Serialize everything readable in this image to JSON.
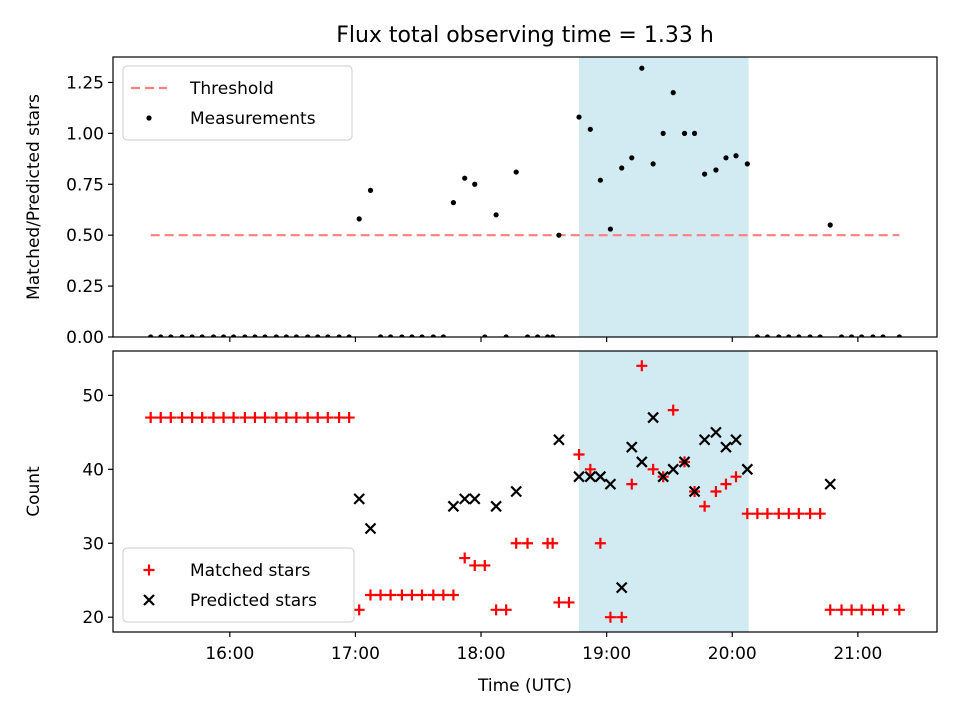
{
  "figure": {
    "title": "Flux total observing time = 1.33 h"
  },
  "chart_data": [
    {
      "type": "scatter",
      "ylabel": "Matched/Predicted stars",
      "ylim": [
        0,
        1.375
      ],
      "yticks": [
        "0.00",
        "0.25",
        "0.50",
        "0.75",
        "1.00",
        "1.25"
      ],
      "ytick_values": [
        0,
        0.25,
        0.5,
        0.75,
        1.0,
        1.25
      ],
      "xlim_hours": [
        15.07,
        21.63
      ],
      "grid": false,
      "legend_location": "upper-left",
      "highlight_span_hours": [
        18.78,
        20.13
      ],
      "highlight_color": "#add8e6",
      "threshold": {
        "name": "Threshold",
        "value": 0.5,
        "x_hours": [
          15.37,
          21.33
        ],
        "color": "#ff7f7f",
        "style": "dashed"
      },
      "series": [
        {
          "name": "Measurements",
          "marker": "dot",
          "color": "#000000",
          "x_hours": [
            15.37,
            15.45,
            15.53,
            15.62,
            15.7,
            15.78,
            15.87,
            15.95,
            16.03,
            16.12,
            16.2,
            16.28,
            16.37,
            16.45,
            16.53,
            16.62,
            16.7,
            16.78,
            16.87,
            16.95,
            17.03,
            17.12,
            17.2,
            17.28,
            17.37,
            17.45,
            17.53,
            17.62,
            17.7,
            17.78,
            17.87,
            17.95,
            18.03,
            18.12,
            18.2,
            18.28,
            18.37,
            18.45,
            18.53,
            18.57,
            18.62,
            18.78,
            18.87,
            18.95,
            19.03,
            19.12,
            19.2,
            19.28,
            19.37,
            19.45,
            19.53,
            19.62,
            19.7,
            19.78,
            19.87,
            19.95,
            20.03,
            20.12,
            20.2,
            20.28,
            20.37,
            20.45,
            20.53,
            20.62,
            20.7,
            20.78,
            20.87,
            20.95,
            21.03,
            21.12,
            21.2,
            21.33
          ],
          "values": [
            0,
            0,
            0,
            0,
            0,
            0,
            0,
            0,
            0,
            0,
            0,
            0,
            0,
            0,
            0,
            0,
            0,
            0,
            0,
            0,
            0.58,
            0.72,
            0,
            0,
            0,
            0,
            0,
            0,
            0,
            0.66,
            0.78,
            0.75,
            0,
            0.6,
            0,
            0.81,
            0,
            0,
            0,
            0,
            0.5,
            1.08,
            1.02,
            0.77,
            0.53,
            0.83,
            0.88,
            1.32,
            0.85,
            1.0,
            1.2,
            1.0,
            1.0,
            0.8,
            0.82,
            0.88,
            0.89,
            0.85,
            0,
            0,
            0,
            0,
            0,
            0,
            0,
            0.55,
            0,
            0,
            0,
            0,
            0,
            0
          ]
        }
      ]
    },
    {
      "type": "scatter",
      "xlabel": "Time (UTC)",
      "ylabel": "Count",
      "ylim": [
        18,
        56
      ],
      "yticks": [
        "20",
        "30",
        "40",
        "50"
      ],
      "ytick_values": [
        20,
        30,
        40,
        50
      ],
      "xlim_hours": [
        15.07,
        21.63
      ],
      "xticks": [
        "16:00",
        "17:00",
        "18:00",
        "19:00",
        "20:00",
        "21:00"
      ],
      "xtick_values": [
        16,
        17,
        18,
        19,
        20,
        21
      ],
      "grid": false,
      "legend_location": "lower-left",
      "highlight_span_hours": [
        18.78,
        20.13
      ],
      "highlight_color": "#add8e6",
      "series": [
        {
          "name": "Matched stars",
          "marker": "plus",
          "color": "#ff0000",
          "x_hours": [
            15.37,
            15.45,
            15.53,
            15.62,
            15.7,
            15.78,
            15.87,
            15.95,
            16.03,
            16.12,
            16.2,
            16.28,
            16.37,
            16.45,
            16.53,
            16.62,
            16.7,
            16.78,
            16.87,
            16.95,
            17.03,
            17.12,
            17.2,
            17.28,
            17.37,
            17.45,
            17.53,
            17.62,
            17.7,
            17.78,
            17.87,
            17.95,
            18.03,
            18.12,
            18.2,
            18.28,
            18.37,
            18.53,
            18.57,
            18.62,
            18.7,
            18.78,
            18.87,
            18.95,
            19.03,
            19.12,
            19.2,
            19.28,
            19.37,
            19.45,
            19.53,
            19.62,
            19.7,
            19.78,
            19.87,
            19.95,
            20.03,
            20.12,
            20.2,
            20.28,
            20.37,
            20.45,
            20.53,
            20.62,
            20.7,
            20.78,
            20.87,
            20.95,
            21.03,
            21.12,
            21.2,
            21.33
          ],
          "values": [
            47,
            47,
            47,
            47,
            47,
            47,
            47,
            47,
            47,
            47,
            47,
            47,
            47,
            47,
            47,
            47,
            47,
            47,
            47,
            47,
            21,
            23,
            23,
            23,
            23,
            23,
            23,
            23,
            23,
            23,
            28,
            27,
            27,
            21,
            21,
            30,
            30,
            30,
            30,
            22,
            22,
            42,
            40,
            30,
            20,
            20,
            38,
            54,
            40,
            39,
            48,
            41,
            37,
            35,
            37,
            38,
            39,
            34,
            34,
            34,
            34,
            34,
            34,
            34,
            34,
            21,
            21,
            21,
            21,
            21,
            21,
            21
          ]
        },
        {
          "name": "Predicted stars",
          "marker": "x",
          "color": "#000000",
          "x_hours": [
            17.03,
            17.12,
            17.78,
            17.87,
            17.95,
            18.12,
            18.28,
            18.62,
            18.78,
            18.87,
            18.95,
            19.03,
            19.12,
            19.2,
            19.28,
            19.37,
            19.45,
            19.53,
            19.62,
            19.7,
            19.78,
            19.87,
            19.95,
            20.03,
            20.12,
            20.78
          ],
          "values": [
            36,
            32,
            35,
            36,
            36,
            35,
            37,
            44,
            39,
            39,
            39,
            38,
            24,
            43,
            41,
            47,
            39,
            40,
            41,
            37,
            44,
            45,
            43,
            44,
            40,
            38
          ]
        }
      ]
    }
  ]
}
